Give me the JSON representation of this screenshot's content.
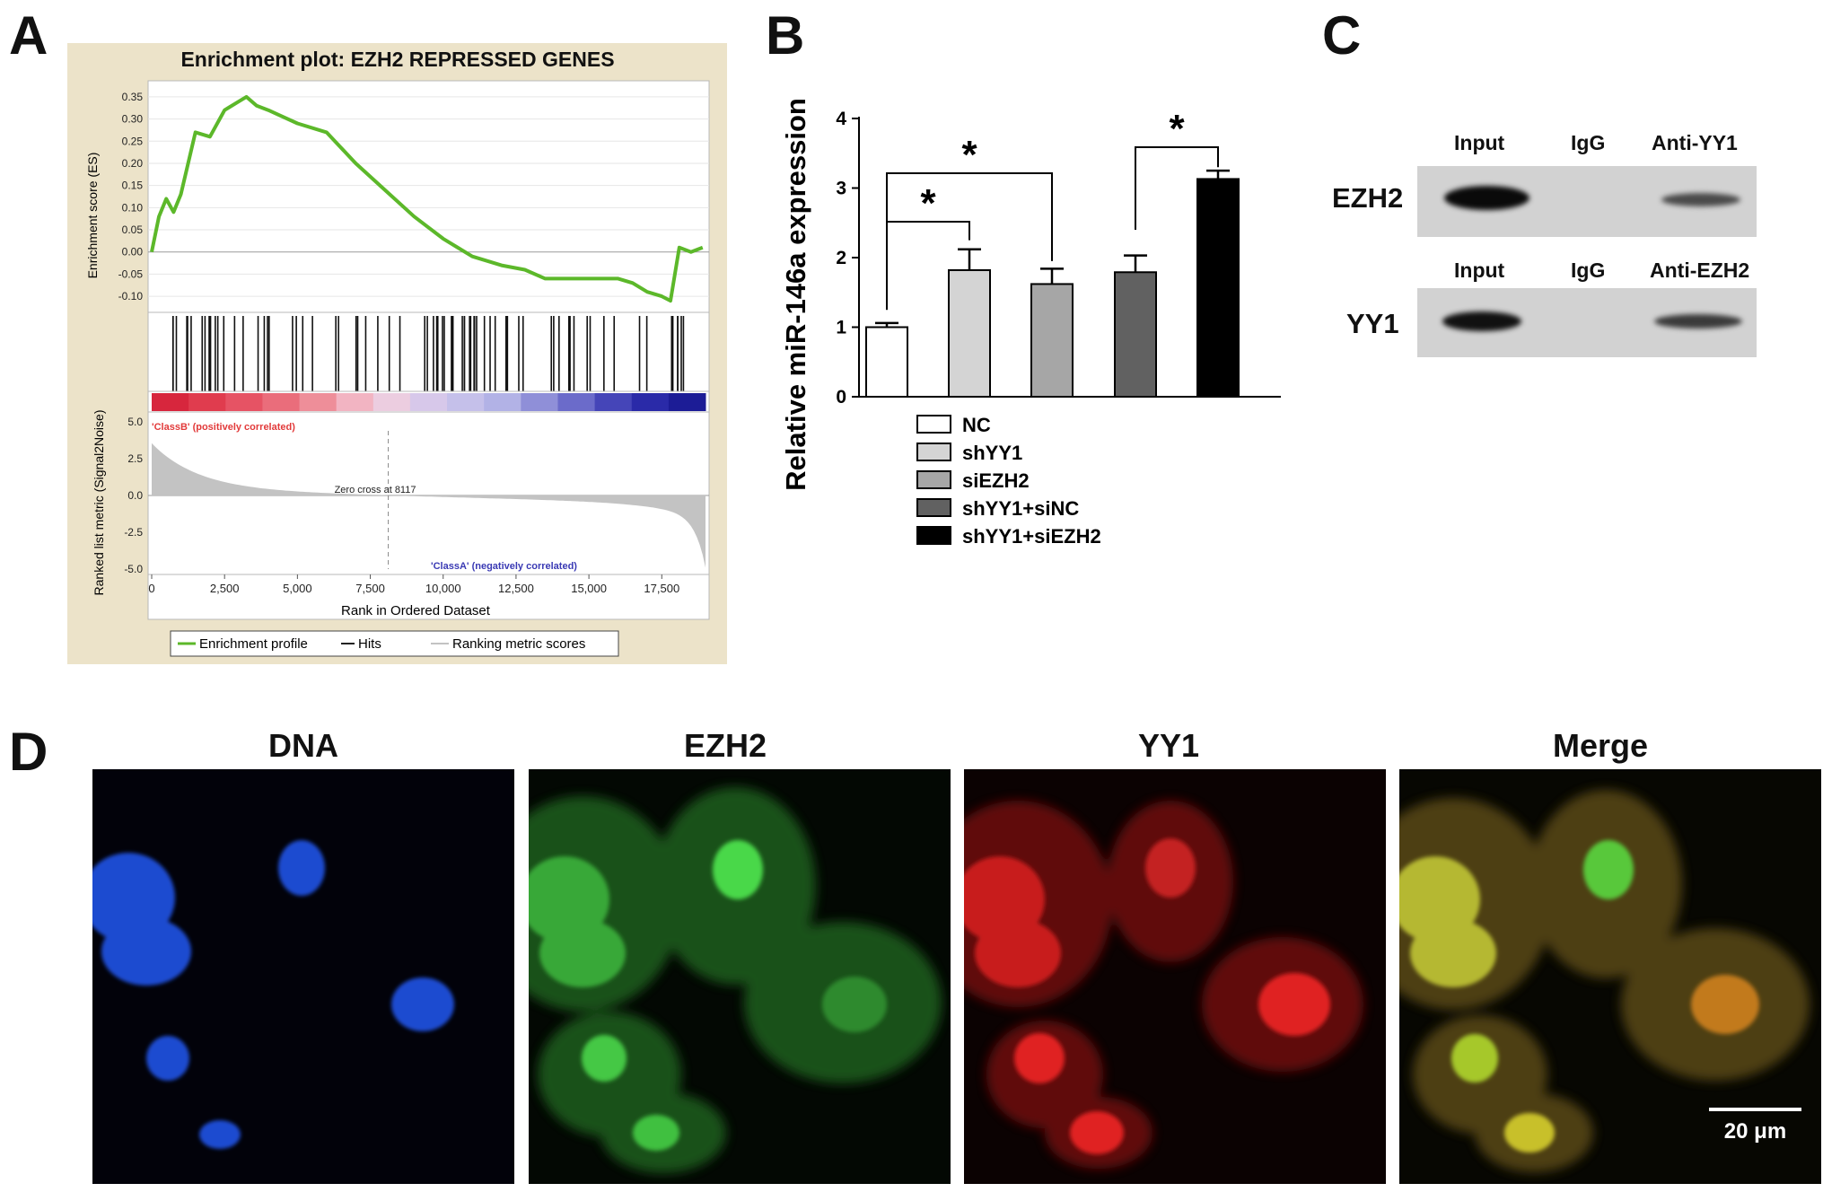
{
  "panels": {
    "a": "A",
    "b": "B",
    "c": "C",
    "d": "D"
  },
  "chart_data": [
    {
      "type": "line",
      "title": "Enrichment plot: EZH2 REPRESSED GENES",
      "ylabel": "Enrichment score (ES)",
      "ylim": [
        -0.12,
        0.37
      ],
      "yticks": [
        "0.35",
        "0.30",
        "0.25",
        "0.20",
        "0.15",
        "0.10",
        "0.05",
        "0.00",
        "-0.05",
        "-0.10"
      ],
      "x": [
        0,
        250,
        500,
        750,
        1000,
        1250,
        1500,
        2000,
        2500,
        3000,
        3250,
        3600,
        4000,
        5000,
        6000,
        7000,
        8000,
        9000,
        10000,
        11000,
        12000,
        12800,
        13500,
        14500,
        15500,
        16000,
        16500,
        17000,
        17500,
        17800,
        18100,
        18500,
        18900
      ],
      "y": [
        0.0,
        0.08,
        0.12,
        0.09,
        0.13,
        0.2,
        0.27,
        0.26,
        0.32,
        0.34,
        0.35,
        0.33,
        0.32,
        0.29,
        0.27,
        0.2,
        0.14,
        0.08,
        0.03,
        -0.01,
        -0.03,
        -0.04,
        -0.06,
        -0.06,
        -0.06,
        -0.06,
        -0.07,
        -0.09,
        -0.1,
        -0.11,
        0.01,
        0.0,
        0.01
      ],
      "hits_track": true,
      "rank_metric": {
        "ylabel": "Ranked list metric (Signal2Noise)",
        "yticks": [
          "5.0",
          "2.5",
          "0.0",
          "-2.5",
          "-5.0"
        ],
        "ylim": [
          -5,
          5
        ],
        "annotation_pos": "'ClassB' (positively correlated)",
        "annotation_neg": "'ClassA' (negatively correlated)",
        "zero_cross_label": "Zero cross at 8117",
        "zero_cross": 8117
      },
      "xlabel": "Rank in Ordered Dataset",
      "xlim": [
        0,
        19000
      ],
      "xticks": [
        "0",
        "2,500",
        "5,000",
        "7,500",
        "10,000",
        "12,500",
        "15,000",
        "17,500"
      ],
      "legend": [
        "Enrichment profile",
        "Hits",
        "Ranking metric scores"
      ],
      "colors": {
        "profile": "#5cb82a",
        "background": "#ece3c9"
      }
    },
    {
      "type": "bar",
      "ylabel": "Relative miR-146a expression",
      "ylim": [
        0,
        4
      ],
      "yticks": [
        "0",
        "1",
        "2",
        "3",
        "4"
      ],
      "categories": [
        "NC",
        "shYY1",
        "siEZH2",
        "shYY1+siNC",
        "shYY1+siEZH2"
      ],
      "values": [
        1.0,
        1.82,
        1.62,
        1.79,
        3.13
      ],
      "errors": [
        0.06,
        0.3,
        0.22,
        0.24,
        0.12
      ],
      "colors": [
        "#ffffff",
        "#d4d4d4",
        "#a6a6a6",
        "#616161",
        "#000000"
      ],
      "significance_marker": "*",
      "significance": [
        [
          0,
          1
        ],
        [
          0,
          2
        ],
        [
          3,
          4
        ]
      ]
    }
  ],
  "blot": {
    "col_labels_top": [
      "Input",
      "IgG",
      "Anti-YY1"
    ],
    "col_labels_bottom": [
      "Input",
      "IgG",
      "Anti-EZH2"
    ],
    "rows": [
      "EZH2",
      "YY1"
    ]
  },
  "micrographs": {
    "titles": [
      "DNA",
      "EZH2",
      "YY1",
      "Merge"
    ],
    "scale_bar": "20 μm"
  }
}
